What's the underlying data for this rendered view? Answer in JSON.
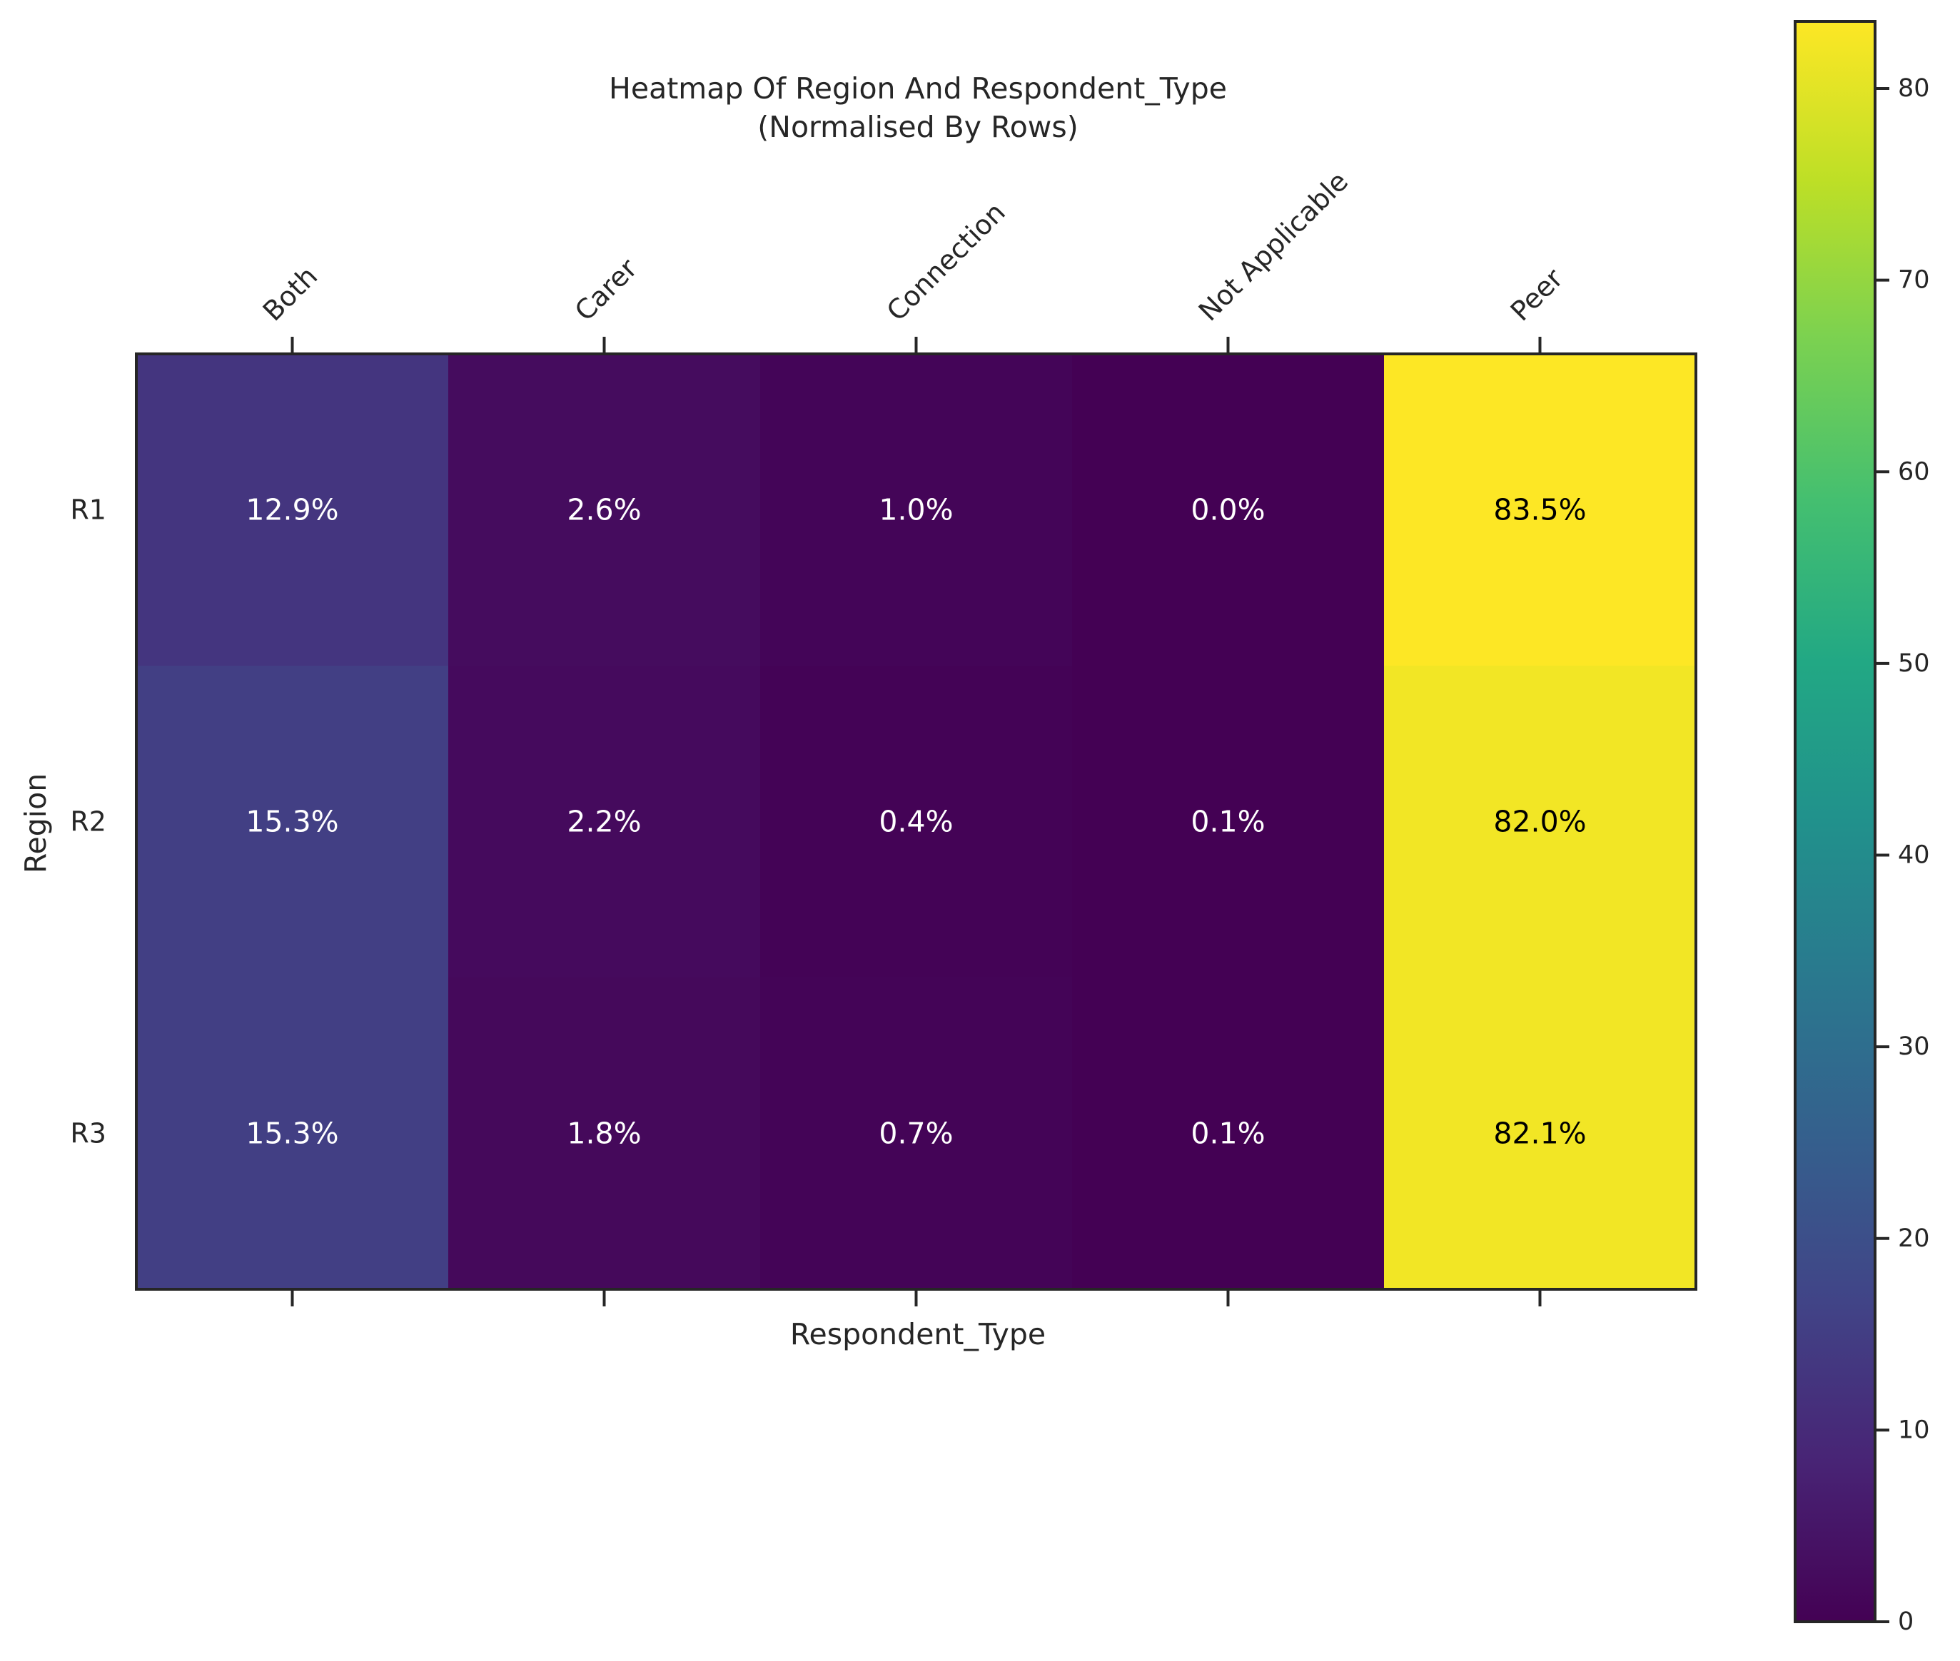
{
  "chart_data": {
    "type": "heatmap",
    "title": "Heatmap Of Region And Respondent_Type",
    "subtitle": "(Normalised By Rows)",
    "xlabel": "Respondent_Type",
    "ylabel": "Region",
    "x_categories": [
      "Both",
      "Carer",
      "Connection",
      "Not Applicable",
      "Peer"
    ],
    "y_categories": [
      "R1",
      "R2",
      "R3"
    ],
    "values": [
      [
        12.9,
        2.6,
        1.0,
        0.0,
        83.5
      ],
      [
        15.3,
        2.2,
        0.4,
        0.1,
        82.0
      ],
      [
        15.3,
        1.8,
        0.7,
        0.1,
        82.1
      ]
    ],
    "cell_labels": [
      [
        "12.9%",
        "2.6%",
        "1.0%",
        "0.0%",
        "83.5%"
      ],
      [
        "15.3%",
        "2.2%",
        "0.4%",
        "0.1%",
        "82.0%"
      ],
      [
        "15.3%",
        "1.8%",
        "0.7%",
        "0.1%",
        "82.1%"
      ]
    ],
    "colormap": "viridis",
    "colorbar": {
      "range": [
        0,
        83.5
      ],
      "ticks": [
        0,
        10,
        20,
        30,
        40,
        50,
        60,
        70,
        80
      ],
      "tick_labels": [
        "0",
        "10",
        "20",
        "30",
        "40",
        "50",
        "60",
        "70",
        "80"
      ]
    },
    "x_axis_position": "top",
    "grid": false
  }
}
